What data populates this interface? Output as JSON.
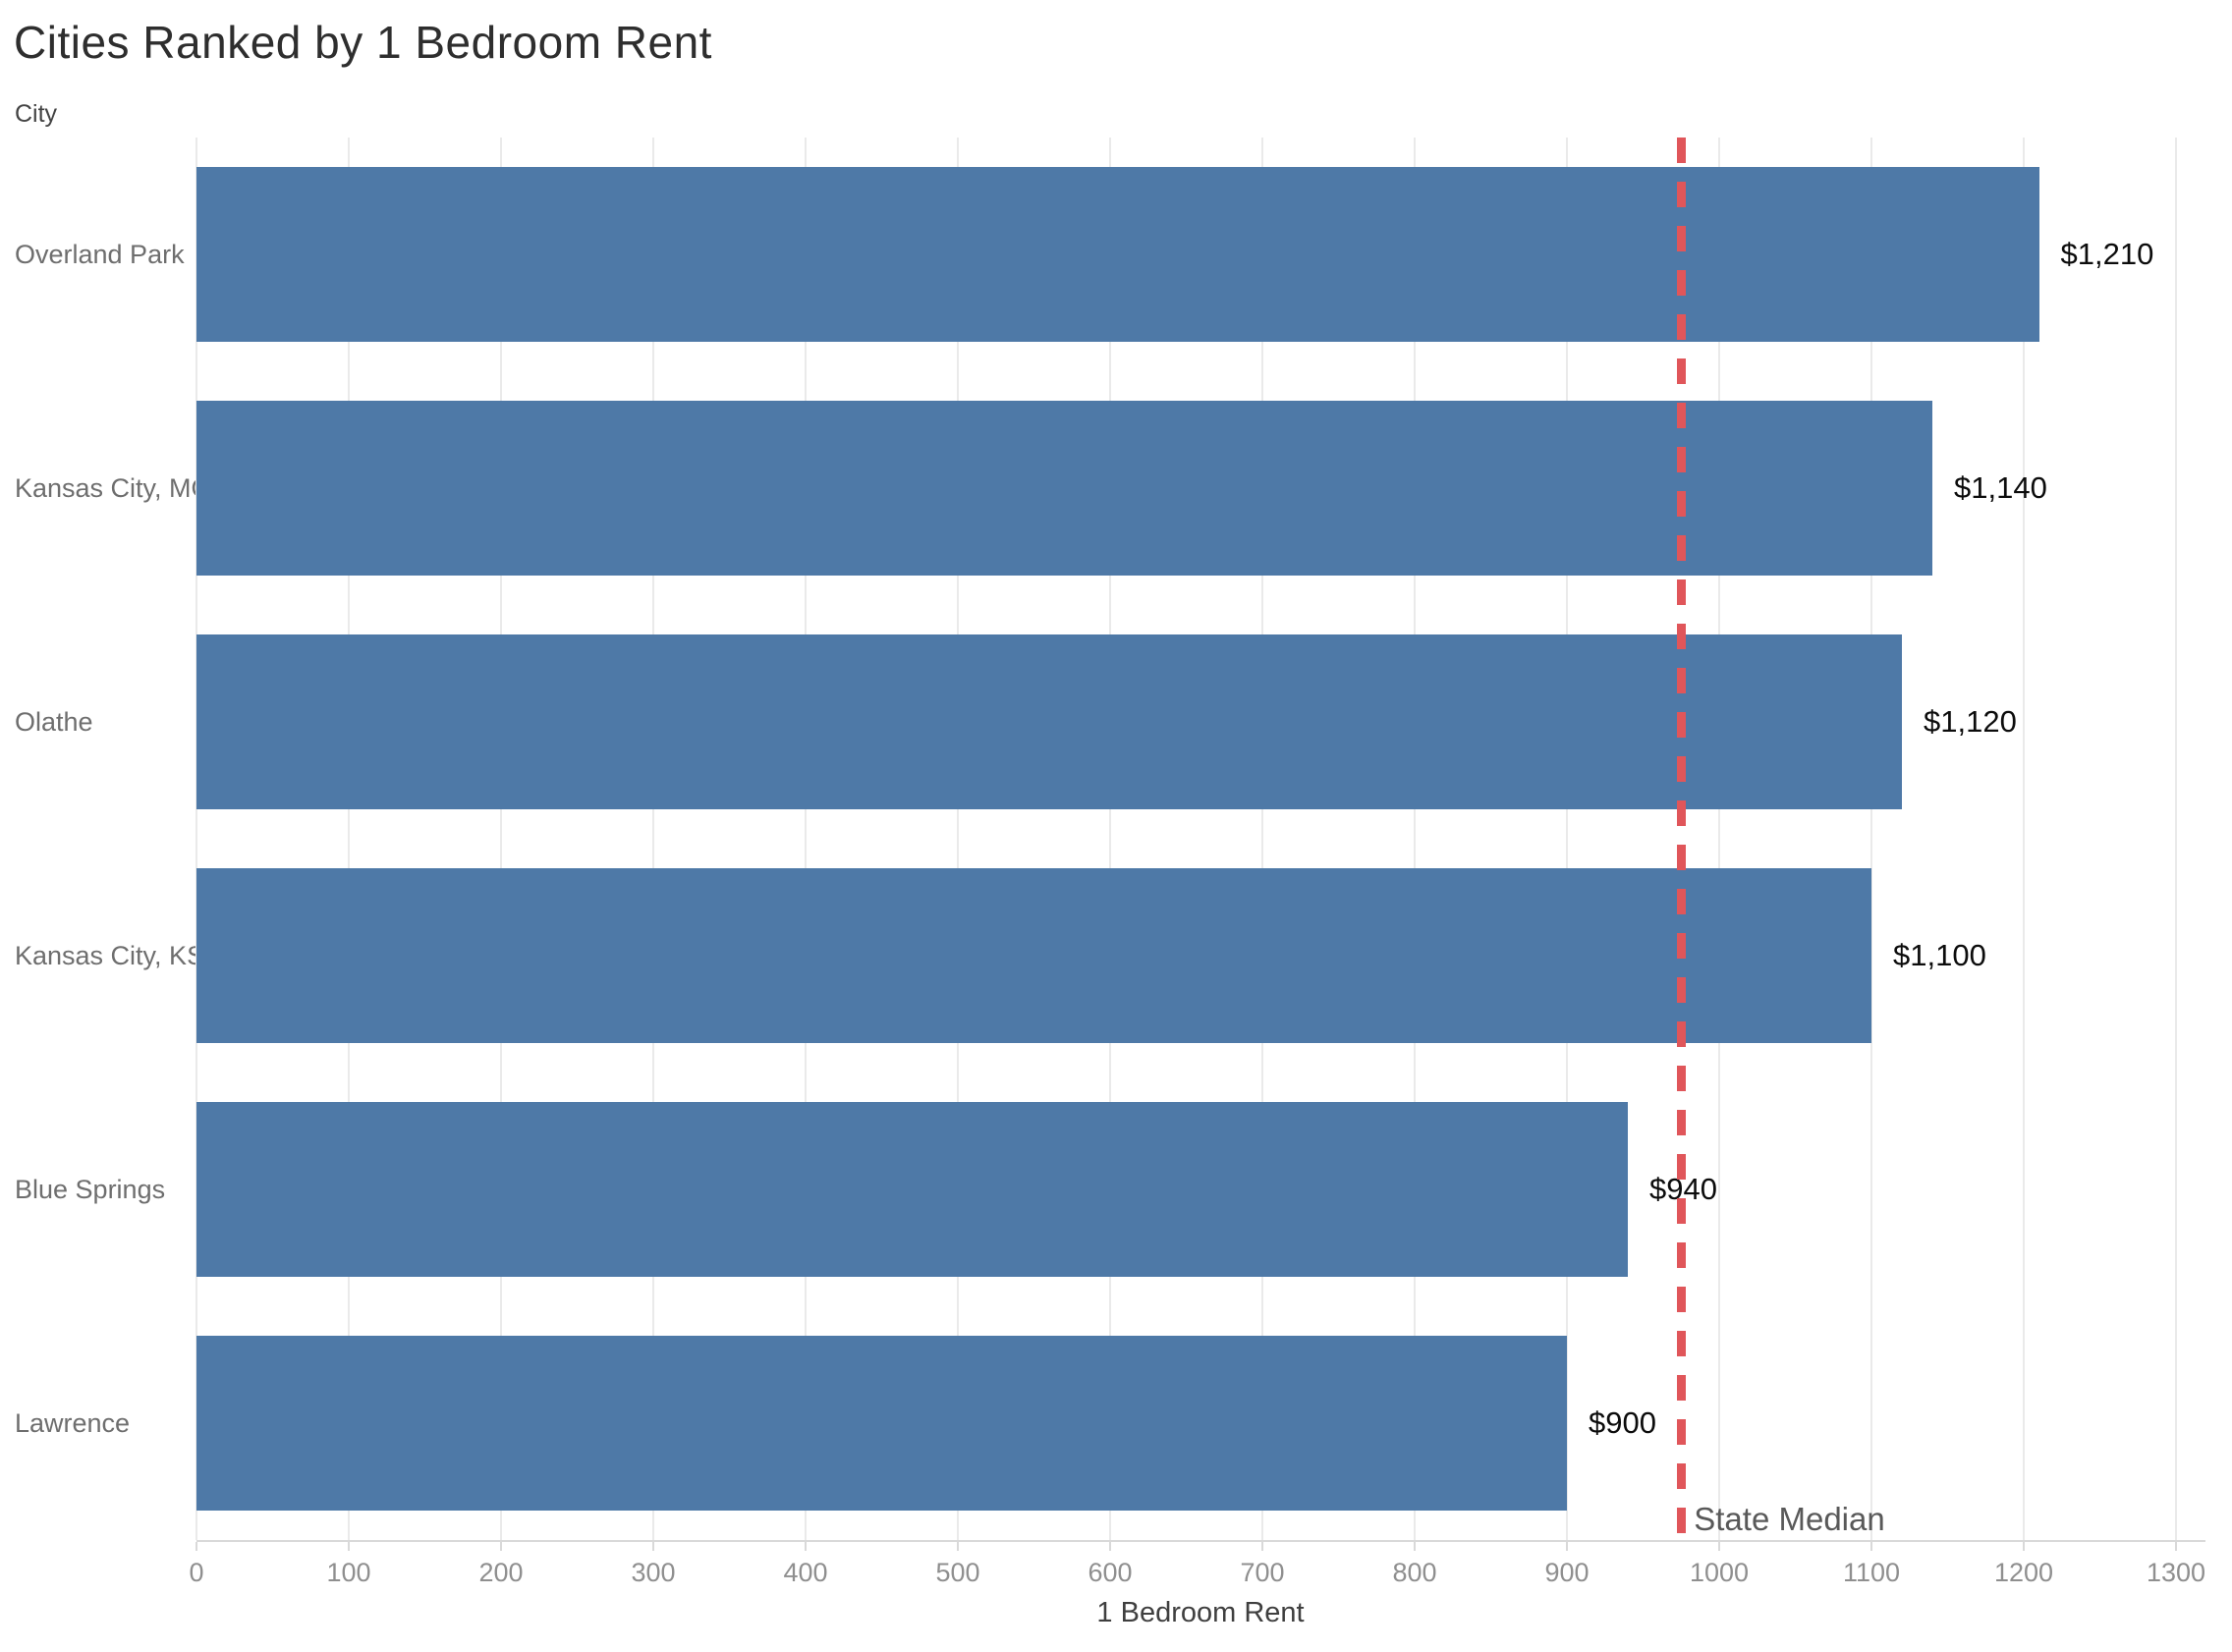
{
  "title": "Cities Ranked by 1 Bedroom Rent",
  "chart_data": {
    "type": "bar",
    "orientation": "horizontal",
    "title": "Cities Ranked by 1 Bedroom Rent",
    "ylabel": "City",
    "xlabel": "1 Bedroom Rent",
    "categories": [
      "Overland Park",
      "Kansas City, MO",
      "Olathe",
      "Kansas City, KS",
      "Blue Springs",
      "Lawrence"
    ],
    "values": [
      1210,
      1140,
      1120,
      1100,
      940,
      900
    ],
    "value_labels": [
      "$1,210",
      "$1,140",
      "$1,120",
      "$1,100",
      "$940",
      "$900"
    ],
    "xlim": [
      0,
      1300
    ],
    "xticks": [
      0,
      100,
      200,
      300,
      400,
      500,
      600,
      700,
      800,
      900,
      1000,
      1100,
      1200,
      1300
    ],
    "grid": "vertical",
    "legend": "none",
    "bar_color": "#4e79a7",
    "reference_line": {
      "label": "State Median",
      "value": 975,
      "color": "#e0565a",
      "style": "dashed"
    }
  }
}
